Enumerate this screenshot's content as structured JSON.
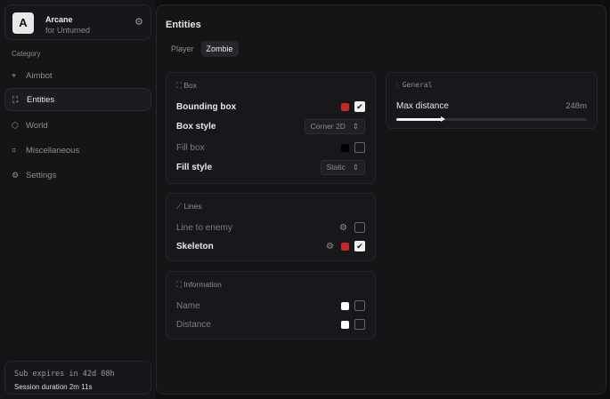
{
  "brand": {
    "logo": "A",
    "name": "Arcane",
    "subtitle": "for Unturned"
  },
  "sidebar": {
    "category_label": "Category",
    "items": [
      {
        "label": "Aimbot",
        "icon": "crosshair-icon"
      },
      {
        "label": "Entities",
        "icon": "scan-face-icon",
        "active": true
      },
      {
        "label": "World",
        "icon": "globe-icon"
      },
      {
        "label": "Miscellaneous",
        "icon": "grid-icon"
      },
      {
        "label": "Settings",
        "icon": "gear-icon"
      }
    ]
  },
  "footer": {
    "subscription": "Sub expires in 42d 08h",
    "session": "Session duration 2m 11s"
  },
  "main": {
    "title": "Entities",
    "tabs": [
      {
        "label": "Player"
      },
      {
        "label": "Zombie",
        "active": true
      }
    ],
    "box": {
      "title": "Box",
      "bounding_box": {
        "label": "Bounding box",
        "color": "#c62828",
        "checked": true
      },
      "box_style": {
        "label": "Box style",
        "value": "Corner 2D"
      },
      "fill_box": {
        "label": "Fill box",
        "color": "#000000",
        "checked": false
      },
      "fill_style": {
        "label": "Fill style",
        "value": "Static"
      }
    },
    "lines": {
      "title": "Lines",
      "line_to_enemy": {
        "label": "Line to enemy",
        "checked": false
      },
      "skeleton": {
        "label": "Skeleton",
        "color": "#c62828",
        "checked": true
      }
    },
    "information": {
      "title": "Information",
      "name": {
        "label": "Name",
        "color": "#ffffff",
        "checked": false
      },
      "distance": {
        "label": "Distance",
        "color": "#ffffff",
        "checked": false
      }
    },
    "general": {
      "title": "General",
      "max_distance": {
        "label": "Max distance",
        "value": "248m",
        "fill_fraction": 0.24
      }
    }
  }
}
